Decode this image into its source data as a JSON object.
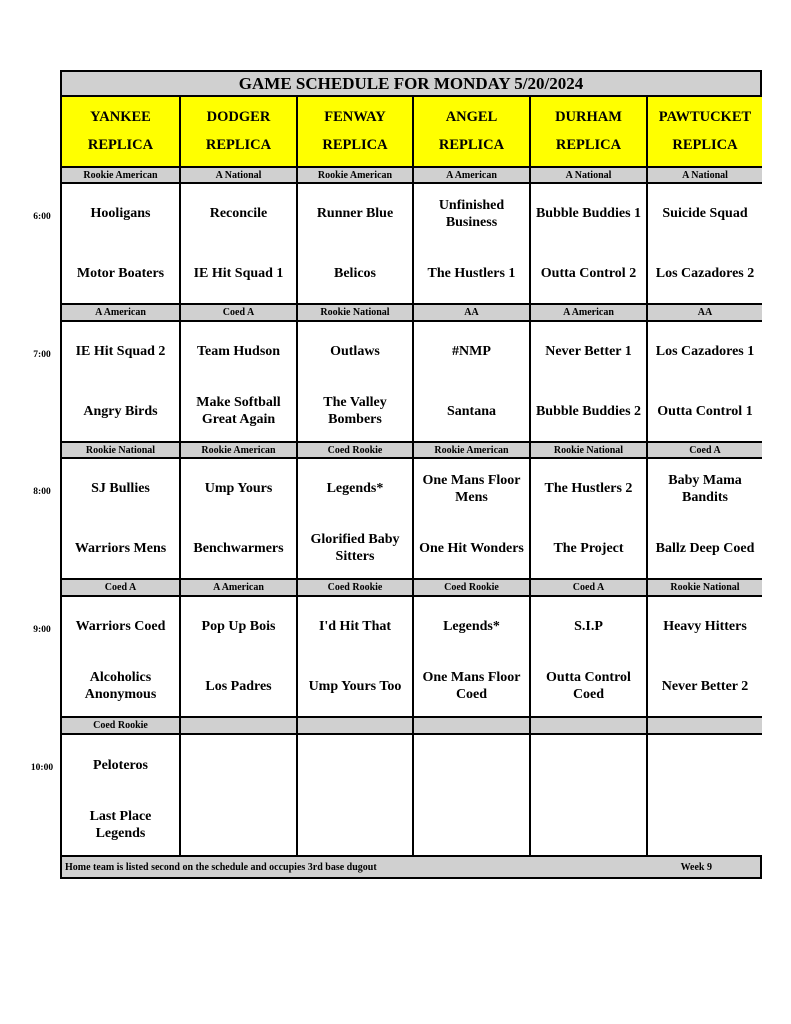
{
  "title": "GAME SCHEDULE FOR MONDAY 5/20/2024",
  "fields": [
    {
      "name": "YANKEE",
      "sub": "REPLICA"
    },
    {
      "name": "DODGER",
      "sub": "REPLICA"
    },
    {
      "name": "FENWAY",
      "sub": "REPLICA"
    },
    {
      "name": "ANGEL",
      "sub": "REPLICA"
    },
    {
      "name": "DURHAM",
      "sub": "REPLICA"
    },
    {
      "name": "PAWTUCKET",
      "sub": "REPLICA"
    }
  ],
  "slots": [
    {
      "time": "6:00",
      "divisions": [
        "Rookie American",
        "A National",
        "Rookie American",
        "A American",
        "A National",
        "A National"
      ],
      "games": [
        [
          "Hooligans",
          "Motor Boaters"
        ],
        [
          "Reconcile",
          "IE Hit Squad 1"
        ],
        [
          "Runner Blue",
          "Belicos"
        ],
        [
          "Unfinished Business",
          "The Hustlers 1"
        ],
        [
          "Bubble Buddies 1",
          "Outta Control 2"
        ],
        [
          "Suicide Squad",
          "Los Cazadores 2"
        ]
      ]
    },
    {
      "time": "7:00",
      "divisions": [
        "A American",
        "Coed A",
        "Rookie National",
        "AA",
        "A American",
        "AA"
      ],
      "games": [
        [
          "IE Hit Squad 2",
          "Angry Birds"
        ],
        [
          "Team Hudson",
          "Make Softball Great Again"
        ],
        [
          "Outlaws",
          "The Valley Bombers"
        ],
        [
          "#NMP",
          "Santana"
        ],
        [
          "Never Better 1",
          "Bubble Buddies 2"
        ],
        [
          "Los Cazadores 1",
          "Outta Control 1"
        ]
      ]
    },
    {
      "time": "8:00",
      "divisions": [
        "Rookie National",
        "Rookie American",
        "Coed Rookie",
        "Rookie American",
        "Rookie National",
        "Coed A"
      ],
      "games": [
        [
          "SJ Bullies",
          "Warriors Mens"
        ],
        [
          "Ump Yours",
          "Benchwarmers"
        ],
        [
          "Legends*",
          "Glorified Baby Sitters"
        ],
        [
          "One Mans Floor Mens",
          "One Hit Wonders"
        ],
        [
          "The Hustlers 2",
          "The Project"
        ],
        [
          "Baby Mama Bandits",
          "Ballz Deep Coed"
        ]
      ]
    },
    {
      "time": "9:00",
      "divisions": [
        "Coed A",
        "A American",
        "Coed Rookie",
        "Coed Rookie",
        "Coed A",
        "Rookie National"
      ],
      "games": [
        [
          "Warriors Coed",
          "Alcoholics Anonymous"
        ],
        [
          "Pop Up Bois",
          "Los Padres"
        ],
        [
          "I'd Hit That",
          "Ump Yours Too"
        ],
        [
          "Legends*",
          "One Mans Floor Coed"
        ],
        [
          "S.I.P",
          "Outta Control Coed"
        ],
        [
          "Heavy Hitters",
          "Never Better 2"
        ]
      ]
    },
    {
      "time": "10:00",
      "divisions": [
        "Coed Rookie",
        "",
        "",
        "",
        "",
        ""
      ],
      "games": [
        [
          "Peloteros",
          "Last Place Legends"
        ],
        [
          "",
          ""
        ],
        [
          "",
          ""
        ],
        [
          "",
          ""
        ],
        [
          "",
          ""
        ],
        [
          "",
          ""
        ]
      ]
    }
  ],
  "footer": {
    "note": "Home team is listed second on the schedule and occupies 3rd base dugout",
    "week": "Week 9"
  },
  "colors": {
    "header": "#ffff00",
    "band": "#d0d0d0"
  }
}
